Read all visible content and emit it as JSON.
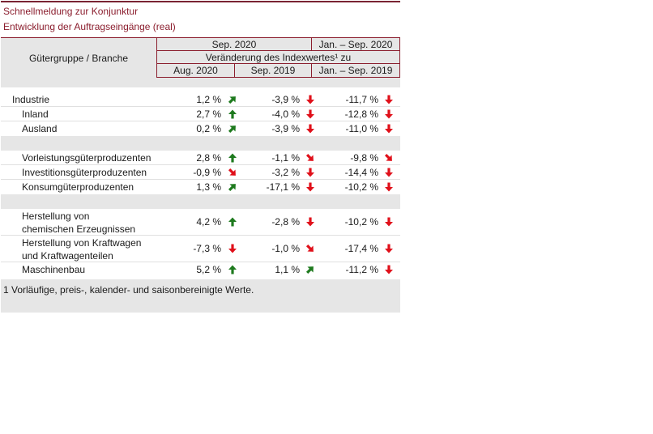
{
  "title": {
    "line1": "Schnellmeldung zur Konjunktur",
    "line2": "Entwicklung der Auftragseingänge (real)"
  },
  "header": {
    "group_label": "Gütergruppe / Branche",
    "period_sep2020": "Sep. 2020",
    "period_jansep2020": "Jan. – Sep. 2020",
    "change_label": "Veränderung des Indexwertes¹ zu",
    "col_aug2020": "Aug. 2020",
    "col_sep2019": "Sep. 2019",
    "col_jansep2019": "Jan. – Sep. 2019"
  },
  "arrow_colors": {
    "up": "#1e7a1e",
    "down": "#e0101a"
  },
  "groups": [
    {
      "rows": [
        {
          "label": "Industrie",
          "indent": false,
          "lines": [
            "Industrie"
          ],
          "v1": "1,2 %",
          "a1": "up-right",
          "v2": "-3,9 %",
          "a2": "down",
          "v3": "-11,7 %",
          "a3": "down"
        },
        {
          "label": "Inland",
          "indent": true,
          "lines": [
            "Inland"
          ],
          "v1": "2,7 %",
          "a1": "up",
          "v2": "-4,0 %",
          "a2": "down",
          "v3": "-12,8 %",
          "a3": "down"
        },
        {
          "label": "Ausland",
          "indent": true,
          "lines": [
            "Ausland"
          ],
          "v1": "0,2 %",
          "a1": "up-right",
          "v2": "-3,9 %",
          "a2": "down",
          "v3": "-11,0 %",
          "a3": "down"
        }
      ]
    },
    {
      "rows": [
        {
          "label": "Vorleistungsgüterproduzenten",
          "indent": true,
          "lines": [
            "Vorleistungsgüterproduzenten"
          ],
          "v1": "2,8 %",
          "a1": "up",
          "v2": "-1,1 %",
          "a2": "down-right",
          "v3": "-9,8 %",
          "a3": "down-right"
        },
        {
          "label": "Investitionsgüterproduzenten",
          "indent": true,
          "lines": [
            "Investitionsgüterproduzenten"
          ],
          "v1": "-0,9 %",
          "a1": "down-right",
          "v2": "-3,2 %",
          "a2": "down",
          "v3": "-14,4 %",
          "a3": "down"
        },
        {
          "label": "Konsumgüterproduzenten",
          "indent": true,
          "lines": [
            "Konsumgüterproduzenten"
          ],
          "v1": "1,3 %",
          "a1": "up-right",
          "v2": "-17,1 %",
          "a2": "down",
          "v3": "-10,2 %",
          "a3": "down"
        }
      ]
    },
    {
      "rows": [
        {
          "label": "Herstellung von chemischen Erzeugnissen",
          "indent": true,
          "lines": [
            "Herstellung von",
            "chemischen Erzeugnissen"
          ],
          "v1": "4,2 %",
          "a1": "up",
          "v2": "-2,8 %",
          "a2": "down",
          "v3": "-10,2 %",
          "a3": "down"
        },
        {
          "label": "Herstellung von Kraftwagen und Kraftwagenteilen",
          "indent": true,
          "lines": [
            "Herstellung von Kraftwagen",
            "und Kraftwagenteilen"
          ],
          "v1": "-7,3 %",
          "a1": "down",
          "v2": "-1,0 %",
          "a2": "down-right",
          "v3": "-17,4 %",
          "a3": "down"
        },
        {
          "label": "Maschinenbau",
          "indent": true,
          "lines": [
            "Maschinenbau"
          ],
          "v1": "5,2 %",
          "a1": "up",
          "v2": "1,1 %",
          "a2": "up-right",
          "v3": "-11,2 %",
          "a3": "down"
        }
      ]
    }
  ],
  "footnote": "1 Vorläufige, preis-, kalender- und saisonbereinigte Werte."
}
